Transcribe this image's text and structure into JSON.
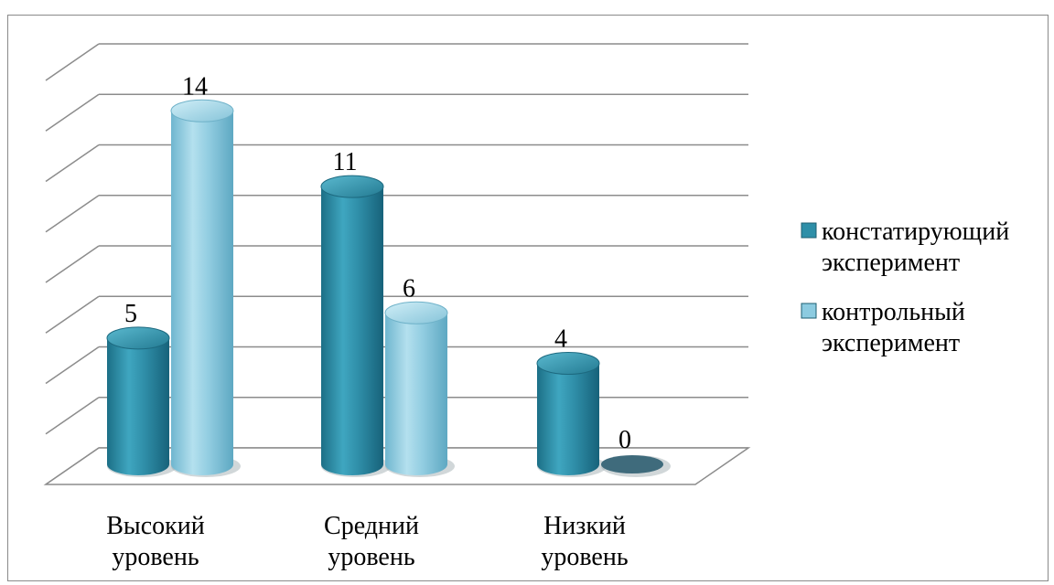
{
  "chart_data": {
    "type": "bar",
    "style": "3d-cylinder",
    "categories": [
      "Высокий уровень",
      "Средний уровень",
      "Низкий уровень"
    ],
    "category_lines": [
      [
        "Высокий",
        "уровень"
      ],
      [
        "Средний",
        "уровень"
      ],
      [
        "Низкий",
        "уровень"
      ]
    ],
    "series": [
      {
        "name": "констатирующий эксперимент",
        "legend_lines": [
          "констатирующий",
          "эксперимент"
        ],
        "values": [
          5,
          11,
          4
        ],
        "color": "#2e8fa8"
      },
      {
        "name": "контрольный эксперимент",
        "legend_lines": [
          "контрольный",
          "эксперимент"
        ],
        "values": [
          14,
          6,
          0
        ],
        "color": "#8ccbe0"
      }
    ],
    "ylim": [
      0,
      16
    ],
    "grid": true,
    "legend_position": "right",
    "title": "",
    "xlabel": "",
    "ylabel": ""
  }
}
